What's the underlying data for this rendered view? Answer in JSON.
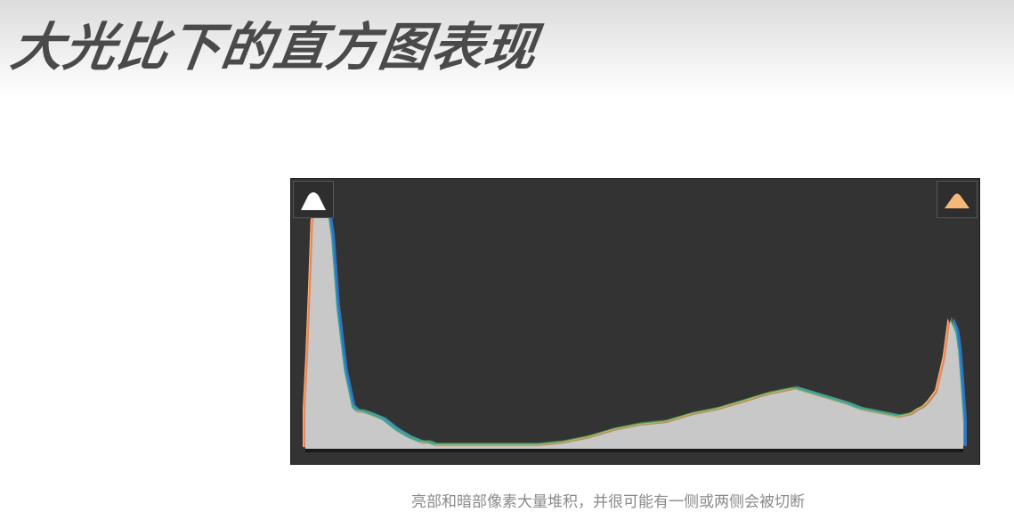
{
  "slide": {
    "title": "大光比下的直方图表现",
    "caption": "亮部和暗部像素大量堆积，并很可能有一侧或两侧会被切断"
  },
  "histogram": {
    "shadow_clip_warning": {
      "icon": "shadow-clipping-triangle-icon",
      "color": "#ffffff"
    },
    "highlight_clip_warning": {
      "icon": "highlight-clipping-triangle-icon",
      "color": "#f5b977"
    }
  },
  "chart_data": {
    "type": "area",
    "x": [
      0,
      1,
      2,
      3,
      5,
      7,
      8,
      10,
      12,
      15,
      18,
      20,
      22,
      25,
      30,
      35,
      40,
      45,
      48,
      50,
      52,
      55,
      60,
      65,
      70,
      80,
      90,
      100,
      110,
      120,
      125,
      130,
      140,
      150,
      160,
      170,
      180,
      190,
      200,
      210,
      215,
      220,
      225,
      230,
      235,
      238,
      240,
      242,
      245,
      248,
      250,
      252,
      253,
      254,
      255
    ],
    "values": [
      0.15,
      0.35,
      0.6,
      0.88,
      0.97,
      1.0,
      0.96,
      0.82,
      0.55,
      0.3,
      0.16,
      0.14,
      0.14,
      0.13,
      0.11,
      0.07,
      0.04,
      0.02,
      0.02,
      0.01,
      0.01,
      0.01,
      0.01,
      0.01,
      0.01,
      0.01,
      0.01,
      0.02,
      0.04,
      0.07,
      0.08,
      0.09,
      0.1,
      0.13,
      0.15,
      0.18,
      0.21,
      0.23,
      0.2,
      0.17,
      0.15,
      0.14,
      0.13,
      0.12,
      0.13,
      0.15,
      0.16,
      0.18,
      0.22,
      0.35,
      0.5,
      0.45,
      0.38,
      0.25,
      0.1
    ],
    "xlim": [
      0,
      255
    ],
    "ylim": [
      0,
      1
    ],
    "colors": {
      "fill": "#c8c8c8",
      "blue": "#2a76c8",
      "orange": "#f5b977",
      "red": "#e04a3a",
      "green": "#5cc46a",
      "background": "#333333"
    },
    "grid": false,
    "legend": "none"
  }
}
